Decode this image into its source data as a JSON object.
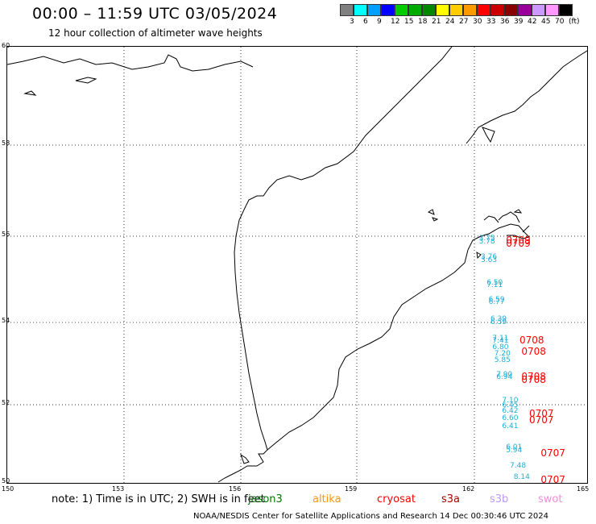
{
  "header": {
    "title": "00:00 – 11:59 UTC 03/05/2024",
    "subtitle": "12 hour collection of altimeter wave heights"
  },
  "scale": {
    "colors": [
      "#808080",
      "#00ffff",
      "#00a0ff",
      "#0000ff",
      "#00cc00",
      "#00aa00",
      "#008800",
      "#ffff00",
      "#ffcc00",
      "#ff9900",
      "#ff0000",
      "#cc0000",
      "#880000",
      "#990099",
      "#cc99ff",
      "#ff99ff",
      "#000000"
    ],
    "labels": [
      "3",
      "6",
      "9",
      "12",
      "15",
      "18",
      "21",
      "24",
      "27",
      "30",
      "33",
      "36",
      "39",
      "42",
      "45",
      "70",
      "(ft)"
    ]
  },
  "axes": {
    "lat_labels": [
      "60",
      "58",
      "56",
      "54",
      "52",
      "50"
    ],
    "lon_labels": [
      "150",
      "153",
      "156",
      "159",
      "162",
      "165"
    ]
  },
  "observations": [
    {
      "text": "3.75",
      "color": "#1ab0d8",
      "lon": 162.2,
      "lat": 55.92,
      "big": false
    },
    {
      "text": "3.78",
      "color": "#1ab0d8",
      "lon": 162.2,
      "lat": 55.85,
      "big": false
    },
    {
      "text": "0709",
      "color": "#ff0000",
      "lon": 162.9,
      "lat": 55.92,
      "big": true
    },
    {
      "text": "0709",
      "color": "#ff0000",
      "lon": 162.9,
      "lat": 55.85,
      "big": true
    },
    {
      "text": "3.76",
      "color": "#1ab0d8",
      "lon": 162.25,
      "lat": 55.5,
      "big": false
    },
    {
      "text": "3.63",
      "color": "#1ab0d8",
      "lon": 162.25,
      "lat": 55.42,
      "big": false
    },
    {
      "text": "6.50",
      "color": "#1ab0d8",
      "lon": 162.4,
      "lat": 54.9,
      "big": false
    },
    {
      "text": "7.11",
      "color": "#1ab0d8",
      "lon": 162.4,
      "lat": 54.84,
      "big": false
    },
    {
      "text": "6.77",
      "color": "#1ab0d8",
      "lon": 162.45,
      "lat": 54.45,
      "big": false
    },
    {
      "text": "6.59",
      "color": "#1ab0d8",
      "lon": 162.45,
      "lat": 54.5,
      "big": false
    },
    {
      "text": "6.39",
      "color": "#1ab0d8",
      "lon": 162.5,
      "lat": 54.05,
      "big": false
    },
    {
      "text": "6.59",
      "color": "#1ab0d8",
      "lon": 162.5,
      "lat": 53.98,
      "big": false
    },
    {
      "text": "7.11",
      "color": "#1ab0d8",
      "lon": 162.55,
      "lat": 53.58,
      "big": false
    },
    {
      "text": "7.41",
      "color": "#1ab0d8",
      "lon": 162.55,
      "lat": 53.52,
      "big": false
    },
    {
      "text": "0708",
      "color": "#ff0000",
      "lon": 163.25,
      "lat": 53.58,
      "big": true
    },
    {
      "text": "6.80",
      "color": "#1ab0d8",
      "lon": 162.55,
      "lat": 53.38,
      "big": false
    },
    {
      "text": "0708",
      "color": "#ff0000",
      "lon": 163.3,
      "lat": 53.32,
      "big": true
    },
    {
      "text": "7.20",
      "color": "#1ab0d8",
      "lon": 162.6,
      "lat": 53.22,
      "big": false
    },
    {
      "text": "5.85",
      "color": "#1ab0d8",
      "lon": 162.6,
      "lat": 53.05,
      "big": false
    },
    {
      "text": "7.90",
      "color": "#1ab0d8",
      "lon": 162.65,
      "lat": 52.7,
      "big": false
    },
    {
      "text": "6.94",
      "color": "#1ab0d8",
      "lon": 162.65,
      "lat": 52.64,
      "big": false
    },
    {
      "text": "0708",
      "color": "#ff0000",
      "lon": 163.3,
      "lat": 52.7,
      "big": true
    },
    {
      "text": "0708",
      "color": "#ff0000",
      "lon": 163.3,
      "lat": 52.62,
      "big": true
    },
    {
      "text": "7.10",
      "color": "#1ab0d8",
      "lon": 162.8,
      "lat": 52.08,
      "big": false
    },
    {
      "text": "6.45",
      "color": "#1ab0d8",
      "lon": 162.8,
      "lat": 51.96,
      "big": false
    },
    {
      "text": "6.42",
      "color": "#1ab0d8",
      "lon": 162.8,
      "lat": 51.82,
      "big": false
    },
    {
      "text": "0707",
      "color": "#ff0000",
      "lon": 163.5,
      "lat": 51.8,
      "big": true
    },
    {
      "text": "6.60",
      "color": "#1ab0d8",
      "lon": 162.8,
      "lat": 51.62,
      "big": false
    },
    {
      "text": "0707",
      "color": "#ff0000",
      "lon": 163.5,
      "lat": 51.62,
      "big": true
    },
    {
      "text": "6.41",
      "color": "#1ab0d8",
      "lon": 162.8,
      "lat": 51.43,
      "big": false
    },
    {
      "text": "6.01",
      "color": "#1ab0d8",
      "lon": 162.9,
      "lat": 50.88,
      "big": false
    },
    {
      "text": "5.94",
      "color": "#1ab0d8",
      "lon": 162.9,
      "lat": 50.8,
      "big": false
    },
    {
      "text": "0707",
      "color": "#ff0000",
      "lon": 163.8,
      "lat": 50.78,
      "big": true
    },
    {
      "text": "7.48",
      "color": "#1ab0d8",
      "lon": 163.0,
      "lat": 50.42,
      "big": false
    },
    {
      "text": "8.14",
      "color": "#1ab0d8",
      "lon": 163.1,
      "lat": 50.12,
      "big": false
    },
    {
      "text": "0707",
      "color": "#ff0000",
      "lon": 163.8,
      "lat": 50.1,
      "big": true
    }
  ],
  "footer": {
    "note": "note: 1) Time is in UTC; 2) SWH is in feet",
    "missions": [
      {
        "name": "jason3",
        "color": "#007700"
      },
      {
        "name": "altika",
        "color": "#ff9900"
      },
      {
        "name": "cryosat",
        "color": "#ff0000"
      },
      {
        "name": "s3a",
        "color": "#aa0000"
      },
      {
        "name": "s3b",
        "color": "#bb99ff"
      },
      {
        "name": "swot",
        "color": "#ff88dd"
      }
    ],
    "credit": "NOAA/NESDIS Center for Satellite Applications and Research    14 Dec 00:30:46 UTC 2024"
  }
}
